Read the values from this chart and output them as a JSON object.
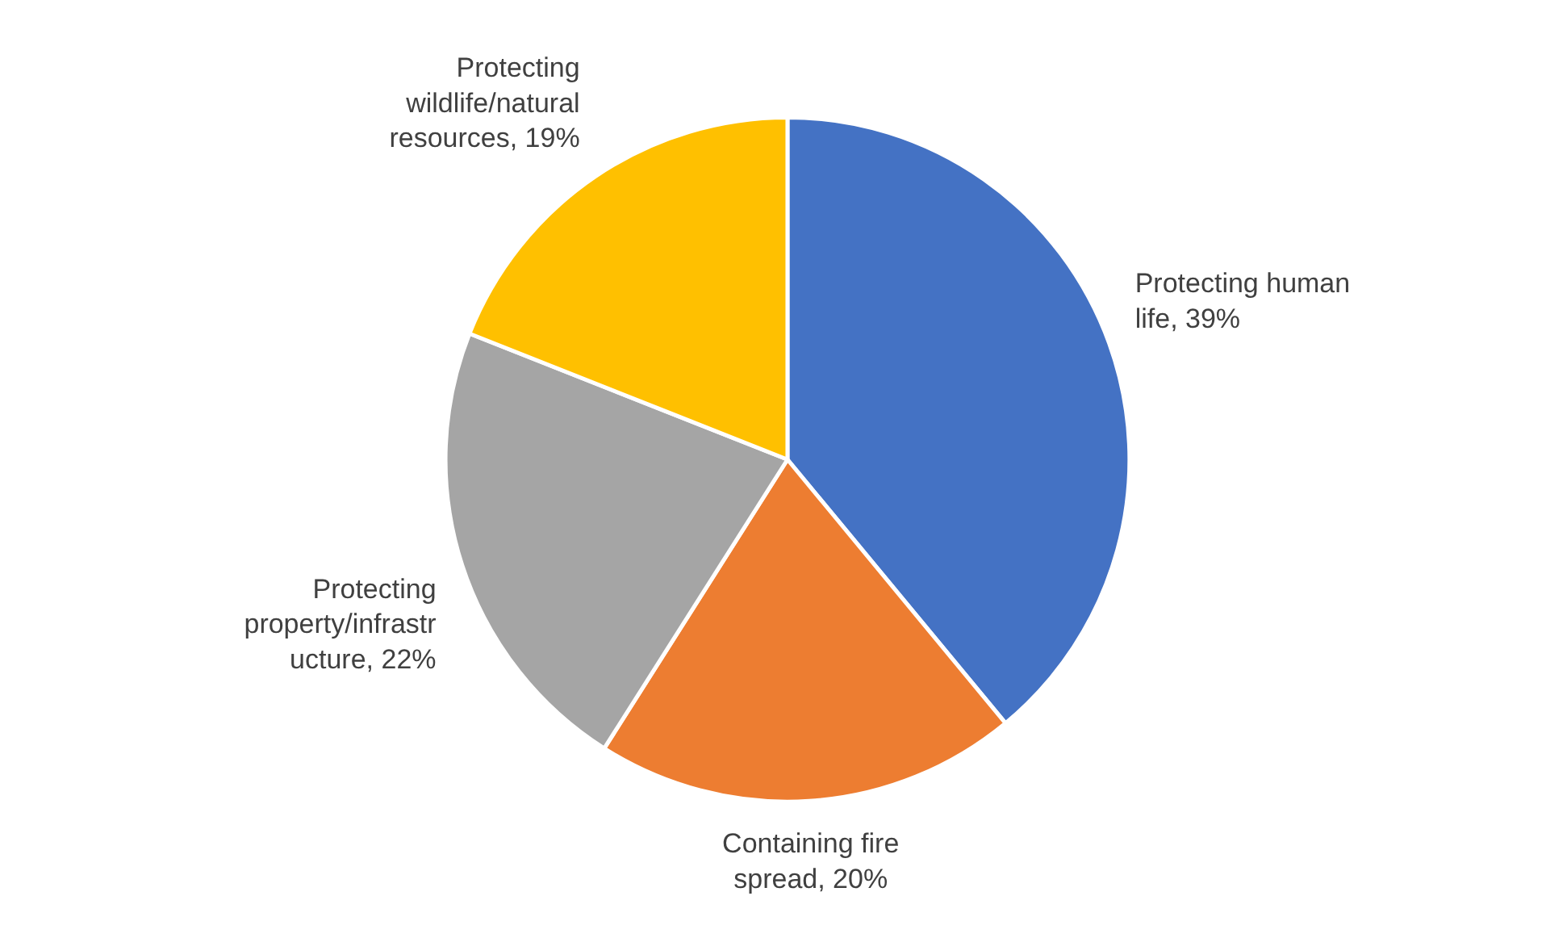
{
  "chart_data": {
    "type": "pie",
    "categories": [
      "Protecting human life",
      "Containing fire spread",
      "Protecting property/infrastructure",
      "Protecting wildlife/natural resources"
    ],
    "values": [
      39,
      20,
      22,
      19
    ],
    "colors": [
      "#4472c4",
      "#ed7d31",
      "#a5a5a5",
      "#ffc000"
    ],
    "value_labels": [
      "39%",
      "20%",
      "22%",
      "19%"
    ]
  }
}
